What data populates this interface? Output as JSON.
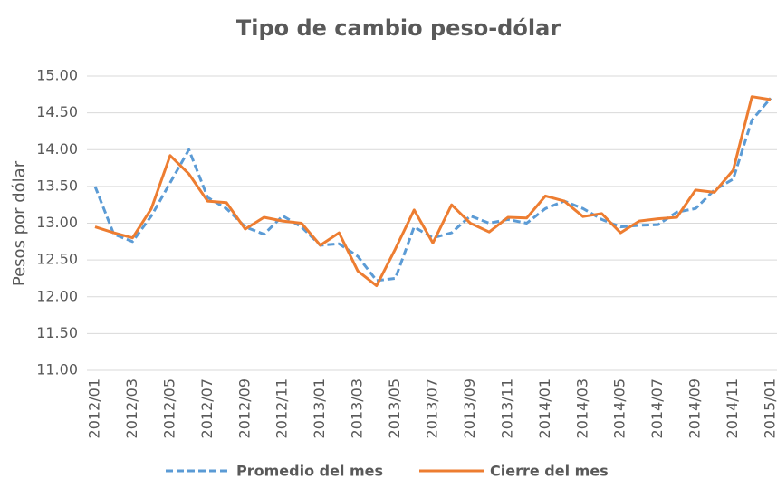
{
  "chart_data": {
    "type": "line",
    "title": "Tipo de cambio peso-dólar",
    "y_label": "Pesos por dólar",
    "categories": [
      "2012/01",
      null,
      "2012/03",
      null,
      "2012/05",
      null,
      "2012/07",
      null,
      "2012/09",
      null,
      "2012/11",
      null,
      "2013/01",
      null,
      "2013/03",
      null,
      "2013/05",
      null,
      "2013/07",
      null,
      "2013/09",
      null,
      "2013/11",
      null,
      "2014/01",
      null,
      "2014/03",
      null,
      "2014/05",
      null,
      "2014/07",
      null,
      "2014/09",
      null,
      "2014/11",
      null,
      "2015/01"
    ],
    "series": [
      {
        "name": "Promedio del mes",
        "color": "#5b9bd5",
        "line_style": "dashed",
        "values": [
          13.5,
          12.85,
          12.75,
          13.1,
          13.55,
          14.0,
          13.35,
          13.2,
          12.95,
          12.85,
          13.1,
          12.95,
          12.7,
          12.72,
          12.55,
          12.22,
          12.25,
          12.95,
          12.8,
          12.87,
          13.1,
          13.0,
          13.05,
          13.0,
          13.2,
          13.3,
          13.2,
          13.05,
          12.95,
          12.97,
          12.98,
          13.15,
          13.2,
          13.45,
          13.6,
          14.4,
          14.7
        ]
      },
      {
        "name": "Cierre del mes",
        "color": "#ed7d31",
        "line_style": "solid",
        "values": [
          12.95,
          12.87,
          12.8,
          13.2,
          13.92,
          13.67,
          13.3,
          13.28,
          12.92,
          13.08,
          13.03,
          13.0,
          12.7,
          12.87,
          12.35,
          12.15,
          12.65,
          13.18,
          12.73,
          13.25,
          13.0,
          12.88,
          13.08,
          13.07,
          13.37,
          13.3,
          13.09,
          13.13,
          12.87,
          13.03,
          13.06,
          13.08,
          13.45,
          13.42,
          13.72,
          14.72,
          14.68
        ]
      }
    ],
    "ylim": [
      11,
      15
    ],
    "yticks": [
      {
        "value": 11,
        "label": "11.00"
      },
      {
        "value": 11.5,
        "label": "11.50"
      },
      {
        "value": 12,
        "label": "12.00"
      },
      {
        "value": 12.5,
        "label": "12.50"
      },
      {
        "value": 13,
        "label": "13.00"
      },
      {
        "value": 13.5,
        "label": "13.50"
      },
      {
        "value": 14,
        "label": "14.00"
      },
      {
        "value": 14.5,
        "label": "14.50"
      },
      {
        "value": 15,
        "label": "15.00"
      }
    ],
    "grid": true,
    "legend": "bottom"
  }
}
